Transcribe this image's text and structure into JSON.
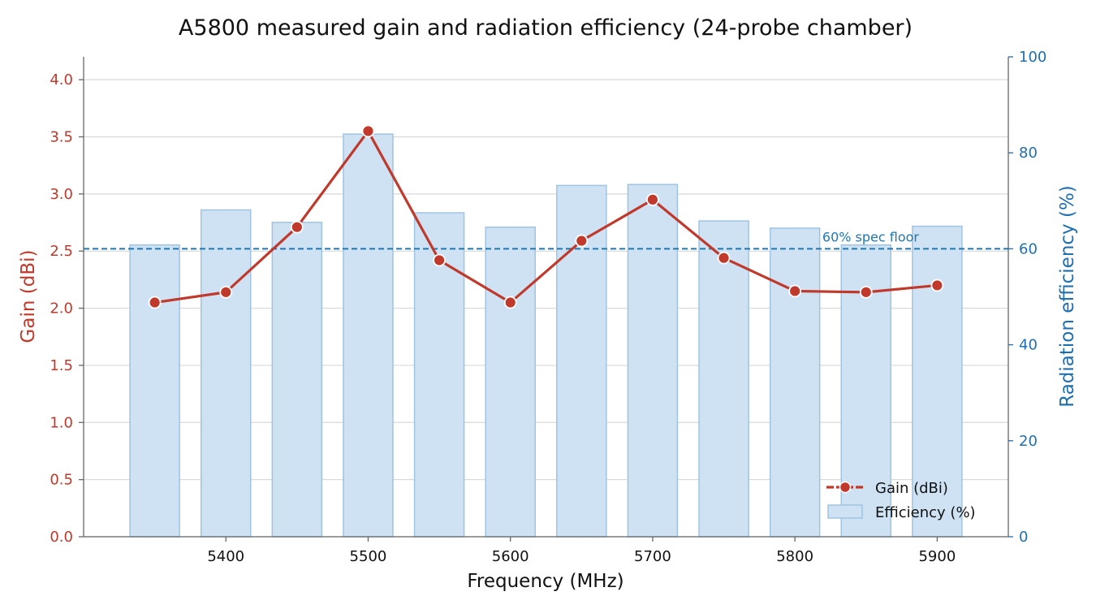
{
  "chart_data": {
    "type": "bar",
    "title": "A5800 measured gain and radiation efficiency (24-probe chamber)",
    "xlabel": "Frequency (MHz)",
    "ylabel_left": "Gain (dBi)",
    "ylabel_right": "Radiation efficiency (%)",
    "x": [
      5350,
      5400,
      5450,
      5500,
      5550,
      5600,
      5650,
      5700,
      5750,
      5800,
      5850,
      5900
    ],
    "x_ticks": [
      "5400",
      "5500",
      "5600",
      "5700",
      "5800",
      "5900"
    ],
    "x_tick_values": [
      5400,
      5500,
      5600,
      5700,
      5800,
      5900
    ],
    "xlim": [
      5300,
      5950
    ],
    "ylim_left": [
      0,
      4.2
    ],
    "y_ticks_left": [
      "0.0",
      "0.5",
      "1.0",
      "1.5",
      "2.0",
      "2.5",
      "3.0",
      "3.5",
      "4.0"
    ],
    "y_tick_values_left": [
      0,
      0.5,
      1.0,
      1.5,
      2.0,
      2.5,
      3.0,
      3.5,
      4.0
    ],
    "ylim_right": [
      0,
      100
    ],
    "y_ticks_right": [
      "0",
      "20",
      "40",
      "60",
      "80",
      "100"
    ],
    "y_tick_values_right": [
      0,
      20,
      40,
      60,
      80,
      100
    ],
    "grid": true,
    "legend_position": "bottom-right",
    "series": [
      {
        "name": "Efficiency (%)",
        "type": "bar",
        "axis": "right",
        "color": "#cfe2f3",
        "edge_color": "#9ec4e2",
        "values": [
          60.8,
          68.1,
          65.5,
          83.9,
          67.5,
          64.5,
          73.2,
          73.4,
          65.8,
          64.3,
          60.8,
          64.7
        ]
      },
      {
        "name": "Gain (dBi)",
        "type": "line",
        "axis": "left",
        "color": "#c0392b",
        "values": [
          2.05,
          2.14,
          2.71,
          3.55,
          2.42,
          2.05,
          2.59,
          2.95,
          2.44,
          2.15,
          2.14,
          2.2
        ]
      }
    ],
    "reference_line": {
      "axis": "right",
      "value": 60,
      "label": "60% spec floor",
      "color": "#1f77b4"
    },
    "colors": {
      "gain_axis": "#c0392b",
      "efficiency_axis": "#1f6fb0",
      "grid": "#d9d9d9",
      "spine": "#666666"
    }
  }
}
